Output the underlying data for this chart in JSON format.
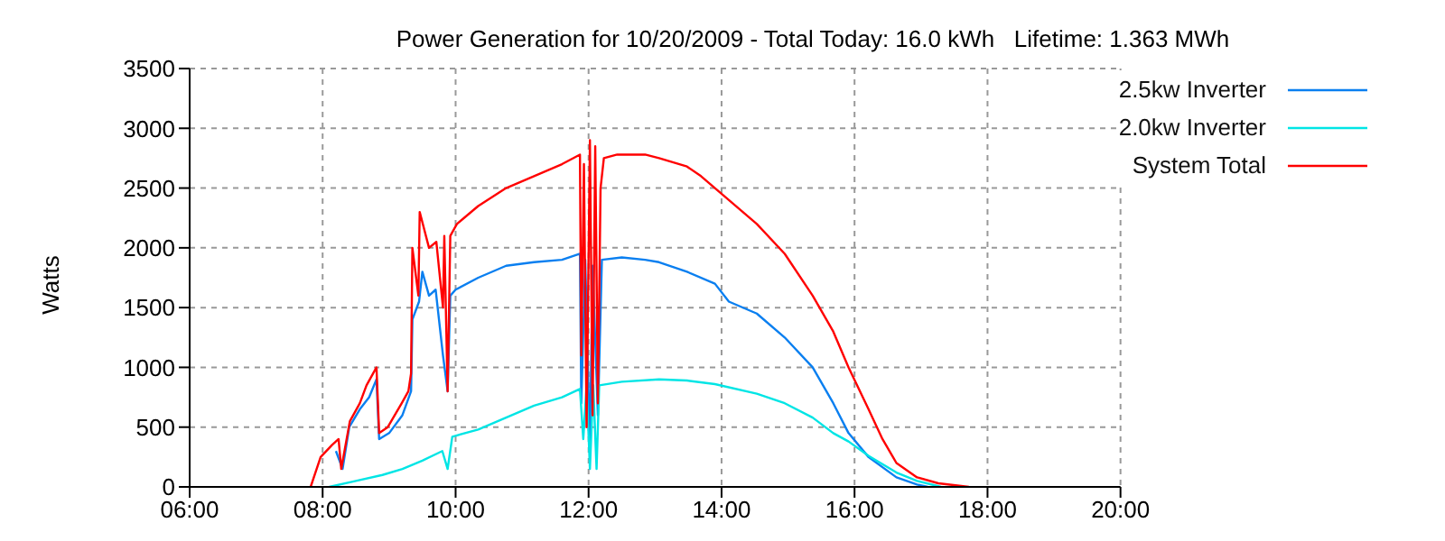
{
  "chart_data": {
    "type": "line",
    "title": "Power Generation for 10/20/2009 - Total Today: 16.0 kWh   Lifetime: 1.363 MWh",
    "ylabel": "Watts",
    "xlim": [
      6,
      20
    ],
    "xticks": [
      {
        "value": 6,
        "label": "06:00"
      },
      {
        "value": 8,
        "label": "08:00"
      },
      {
        "value": 10,
        "label": "10:00"
      },
      {
        "value": 12,
        "label": "12:00"
      },
      {
        "value": 14,
        "label": "14:00"
      },
      {
        "value": 16,
        "label": "16:00"
      },
      {
        "value": 18,
        "label": "18:00"
      },
      {
        "value": 20,
        "label": "20:00"
      }
    ],
    "ylim": [
      0,
      3500
    ],
    "yticks": [
      0,
      500,
      1000,
      1500,
      2000,
      2500,
      3000,
      3500
    ],
    "grid": true,
    "legend": "top right",
    "marker": "none",
    "line_style": "solid",
    "series": [
      {
        "name": "2.5kw Inverter",
        "color": "#0a7ff0",
        "x": [
          8.2,
          8.3,
          8.4,
          8.56,
          8.7,
          8.81,
          8.85,
          9.0,
          9.2,
          9.33,
          9.35,
          9.45,
          9.5,
          9.6,
          9.7,
          9.81,
          9.88,
          9.92,
          10.0,
          10.34,
          10.76,
          11.18,
          11.6,
          11.87,
          11.89,
          11.95,
          12.02,
          12.06,
          12.14,
          12.2,
          12.5,
          12.85,
          13.06,
          13.48,
          13.9,
          14.11,
          14.53,
          14.95,
          15.37,
          15.68,
          15.91,
          16.21,
          16.63,
          16.94,
          17.1
        ],
        "values": [
          300,
          150,
          500,
          650,
          750,
          900,
          400,
          450,
          600,
          800,
          1400,
          1550,
          1800,
          1600,
          1650,
          1100,
          800,
          1600,
          1650,
          1750,
          1850,
          1880,
          1900,
          1950,
          700,
          1900,
          300,
          1850,
          600,
          1900,
          1920,
          1900,
          1880,
          1800,
          1700,
          1550,
          1450,
          1250,
          1000,
          700,
          450,
          250,
          80,
          20,
          0
        ]
      },
      {
        "name": "2.0kw Inverter",
        "color": "#00e5e5",
        "x": [
          8.1,
          8.5,
          8.9,
          9.2,
          9.5,
          9.8,
          9.88,
          9.95,
          10.34,
          10.76,
          11.18,
          11.6,
          11.87,
          11.92,
          11.97,
          12.02,
          12.07,
          12.12,
          12.16,
          12.5,
          13.06,
          13.48,
          13.9,
          14.53,
          14.95,
          15.37,
          15.68,
          15.91,
          16.21,
          16.63,
          16.94,
          17.3
        ],
        "values": [
          0,
          50,
          100,
          150,
          220,
          300,
          150,
          420,
          480,
          580,
          680,
          750,
          820,
          400,
          850,
          150,
          850,
          150,
          850,
          880,
          900,
          890,
          860,
          780,
          700,
          580,
          450,
          380,
          260,
          120,
          50,
          0
        ]
      },
      {
        "name": "System Total",
        "color": "#ff0000",
        "x": [
          7.82,
          7.97,
          8.14,
          8.24,
          8.28,
          8.41,
          8.56,
          8.66,
          8.81,
          8.85,
          8.98,
          9.19,
          9.29,
          9.33,
          9.35,
          9.44,
          9.46,
          9.6,
          9.71,
          9.81,
          9.83,
          9.88,
          9.92,
          10.02,
          10.34,
          10.76,
          11.18,
          11.6,
          11.87,
          11.89,
          11.93,
          11.97,
          12.02,
          12.06,
          12.1,
          12.14,
          12.18,
          12.23,
          12.43,
          12.85,
          13.06,
          13.48,
          13.69,
          13.9,
          14.11,
          14.53,
          14.95,
          15.37,
          15.68,
          15.91,
          16.21,
          16.42,
          16.63,
          16.94,
          17.26,
          17.72
        ],
        "values": [
          0,
          250,
          350,
          400,
          150,
          550,
          700,
          850,
          1000,
          450,
          500,
          700,
          800,
          950,
          2000,
          1600,
          2300,
          2000,
          2050,
          1500,
          2100,
          800,
          2100,
          2200,
          2350,
          2500,
          2600,
          2700,
          2780,
          1100,
          2700,
          500,
          2900,
          600,
          2850,
          700,
          2500,
          2750,
          2780,
          2780,
          2750,
          2680,
          2600,
          2500,
          2400,
          2200,
          1950,
          1600,
          1300,
          1000,
          650,
          400,
          200,
          80,
          30,
          0
        ]
      }
    ]
  }
}
